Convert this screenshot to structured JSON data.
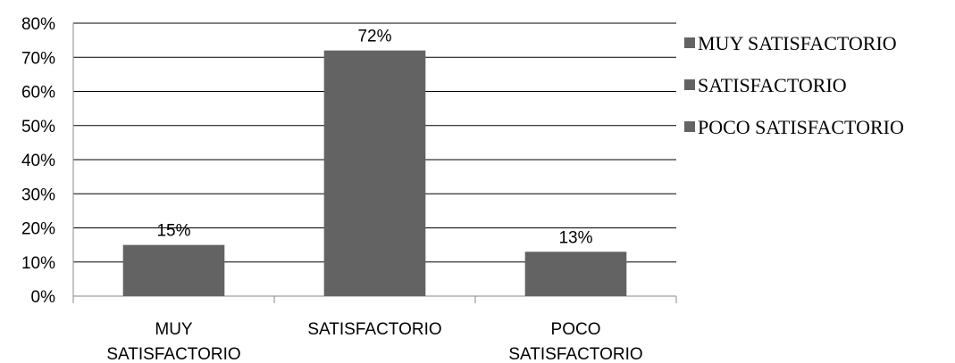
{
  "chart_data": {
    "type": "bar",
    "categories": [
      "MUY SATISFACTORIO",
      "SATISFACTORIO",
      "POCO SATISFACTORIO"
    ],
    "category_lines": [
      [
        "MUY",
        "SATISFACTORIO"
      ],
      [
        "SATISFACTORIO"
      ],
      [
        "POCO",
        "SATISFACTORIO"
      ]
    ],
    "values": [
      15,
      72,
      13
    ],
    "data_labels": [
      "15%",
      "72%",
      "13%"
    ],
    "ylim": [
      0,
      80
    ],
    "yticks": [
      "0%",
      "10%",
      "20%",
      "30%",
      "40%",
      "50%",
      "60%",
      "70%",
      "80%"
    ],
    "grid": true,
    "legend": [
      "MUY SATISFACTORIO",
      "SATISFACTORIO",
      "POCO SATISFACTORIO"
    ],
    "legend_position": "right",
    "bar_color": "#636363",
    "title": "",
    "xlabel": "",
    "ylabel": ""
  }
}
